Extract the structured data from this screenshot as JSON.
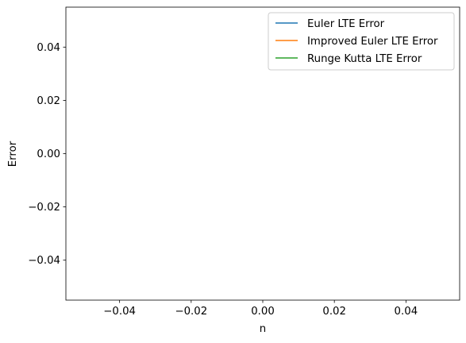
{
  "chart_data": {
    "type": "line",
    "xlabel": "n",
    "ylabel": "Error",
    "xlim": [
      -0.055,
      0.055
    ],
    "ylim": [
      -0.055,
      0.055
    ],
    "x_ticks": [
      -0.04,
      -0.02,
      0.0,
      0.02,
      0.04
    ],
    "x_tick_labels": [
      "−0.04",
      "−0.02",
      "0.00",
      "0.02",
      "0.04"
    ],
    "y_ticks": [
      0.04,
      0.02,
      0.0,
      -0.02,
      -0.04
    ],
    "y_tick_labels": [
      "0.04",
      "0.02",
      "0.00",
      "−0.02",
      "−0.04"
    ],
    "grid": false,
    "legend_position": "top-right",
    "series": [
      {
        "name": "Euler LTE Error",
        "color": "#1f77b4",
        "x": [],
        "y": []
      },
      {
        "name": "Improved Euler LTE Error",
        "color": "#ff7f0e",
        "x": [],
        "y": []
      },
      {
        "name": "Runge Kutta LTE Error",
        "color": "#2ca02c",
        "x": [],
        "y": []
      }
    ]
  }
}
